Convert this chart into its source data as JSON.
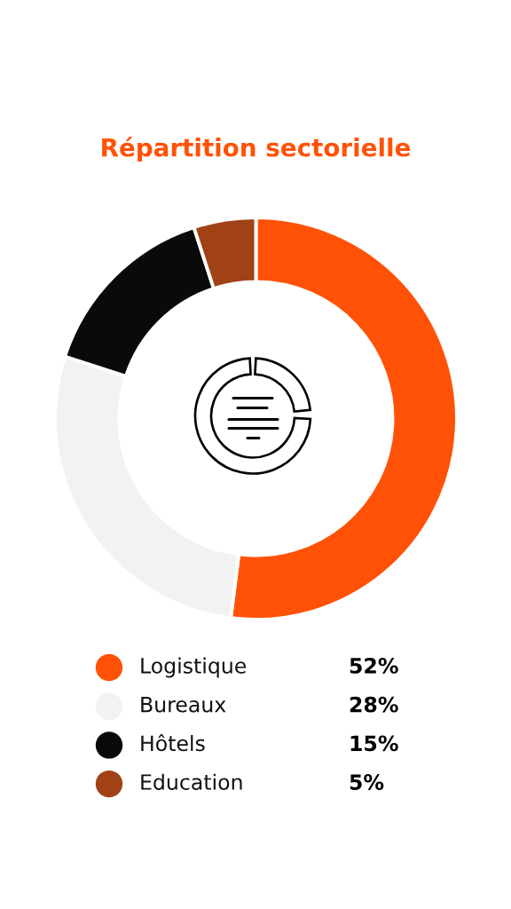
{
  "chart_data": {
    "type": "donut",
    "title": "Répartition sectorielle",
    "categories": [
      "Logistique",
      "Bureaux",
      "Hôtels",
      "Education"
    ],
    "values": [
      52,
      28,
      15,
      5
    ],
    "colors": [
      "#ff5207",
      "#f2f2f2",
      "#0a0a0a",
      "#a04216"
    ],
    "value_labels": [
      "52%",
      "28%",
      "15%",
      "5%"
    ],
    "legend": "bottom"
  }
}
